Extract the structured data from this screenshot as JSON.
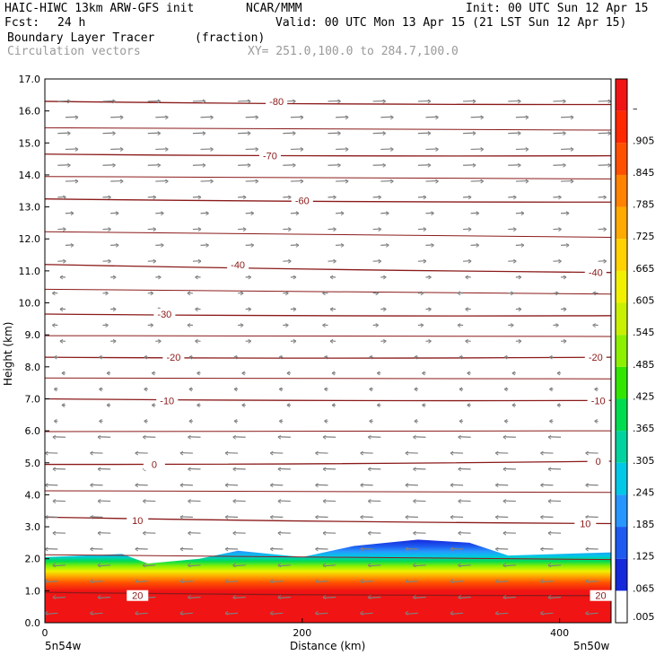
{
  "header": {
    "model": "HAIC-HIWC 13km ARW-GFS init",
    "org": "NCAR/MMM",
    "init": "Init: 00 UTC Sun 12 Apr 15",
    "fcst_label": "Fcst:",
    "fcst_value": "24 h",
    "valid": "Valid: 00 UTC Mon 13 Apr 15 (21 LST Sun 12 Apr 15)",
    "field": "Boundary Layer Tracer",
    "field_units": "(fraction)",
    "vectors": "Circulation vectors",
    "xy": "XY= 251.0,100.0 to 284.7,100.0"
  },
  "chart_data": {
    "type": "heatmap",
    "ylabel": "Height (km)",
    "xlabel": "Distance (km)",
    "xlim": [
      0,
      440
    ],
    "ylim": [
      0,
      17
    ],
    "x_ticks": [
      0,
      200,
      400
    ],
    "y_ticks": [
      "0.0",
      "1.0",
      "2.0",
      "3.0",
      "4.0",
      "5.0",
      "6.0",
      "7.0",
      "8.0",
      "9.0",
      "10.0",
      "11.0",
      "12.0",
      "13.0",
      "14.0",
      "15.0",
      "16.0",
      "17.0"
    ],
    "left_endpoint": "5n54w",
    "right_endpoint": "5n50w",
    "colorbar_labels": [
      ".005",
      ".065",
      ".125",
      ".185",
      ".245",
      ".305",
      ".365",
      ".425",
      ".485",
      ".545",
      ".605",
      ".665",
      ".725",
      ".785",
      ".845",
      ".905",
      "–"
    ],
    "colorbar_colors": [
      "#ffffff",
      "#1428dc",
      "#1e5af0",
      "#2896ff",
      "#00c8e6",
      "#00d2a0",
      "#00dc50",
      "#32e600",
      "#8cf000",
      "#c8f000",
      "#f0f000",
      "#ffd200",
      "#ffaa00",
      "#ff8200",
      "#ff5000",
      "#ff2800",
      "#f01414"
    ],
    "boundary_layer_top_km": [
      {
        "x": 0,
        "y": 2.05
      },
      {
        "x": 60,
        "y": 2.15
      },
      {
        "x": 80,
        "y": 1.85
      },
      {
        "x": 120,
        "y": 2.0
      },
      {
        "x": 150,
        "y": 2.25
      },
      {
        "x": 200,
        "y": 2.05
      },
      {
        "x": 240,
        "y": 2.4
      },
      {
        "x": 290,
        "y": 2.6
      },
      {
        "x": 330,
        "y": 2.5
      },
      {
        "x": 360,
        "y": 2.1
      },
      {
        "x": 440,
        "y": 2.2
      }
    ],
    "isotherms": [
      {
        "label": "20",
        "y_left": 0.95,
        "y_right": 0.85
      },
      {
        "label": "10",
        "y_left": 3.3,
        "y_right": 3.1
      },
      {
        "label": "0",
        "y_left": 4.95,
        "y_right": 5.05
      },
      {
        "label": "-10",
        "y_left": 7.0,
        "y_right": 6.95
      },
      {
        "label": "-20",
        "y_left": 8.3,
        "y_right": 8.3
      },
      {
        "label": "-30",
        "y_left": 9.65,
        "y_right": 9.6
      },
      {
        "label": "-40",
        "y_left": 11.2,
        "y_right": 10.95
      },
      {
        "label": "-60",
        "y_left": 13.25,
        "y_right": 13.15
      },
      {
        "label": "-70",
        "y_left": 14.65,
        "y_right": 14.6
      },
      {
        "label": "-80",
        "y_left": 16.3,
        "y_right": 16.2
      }
    ],
    "isotherm_labels": [
      {
        "text": "20",
        "x": 72,
        "y": 0.85
      },
      {
        "text": "20",
        "x": 432,
        "y": 0.85
      },
      {
        "text": "10",
        "x": 72,
        "y": 3.2
      },
      {
        "text": "10",
        "x": 420,
        "y": 3.1
      },
      {
        "text": "0",
        "x": 85,
        "y": 4.95
      },
      {
        "text": "0",
        "x": 430,
        "y": 5.05
      },
      {
        "text": "-10",
        "x": 95,
        "y": 6.95
      },
      {
        "text": "-10",
        "x": 430,
        "y": 6.95
      },
      {
        "text": "-20",
        "x": 100,
        "y": 8.3
      },
      {
        "text": "-20",
        "x": 428,
        "y": 8.3
      },
      {
        "text": "-30",
        "x": 93,
        "y": 9.65
      },
      {
        "text": "-40",
        "x": 150,
        "y": 11.2
      },
      {
        "text": "-40",
        "x": 428,
        "y": 10.95
      },
      {
        "text": "-60",
        "x": 200,
        "y": 13.2
      },
      {
        "text": "-70",
        "x": 175,
        "y": 14.6
      },
      {
        "text": "-80",
        "x": 180,
        "y": 16.3
      }
    ],
    "grid": false
  }
}
